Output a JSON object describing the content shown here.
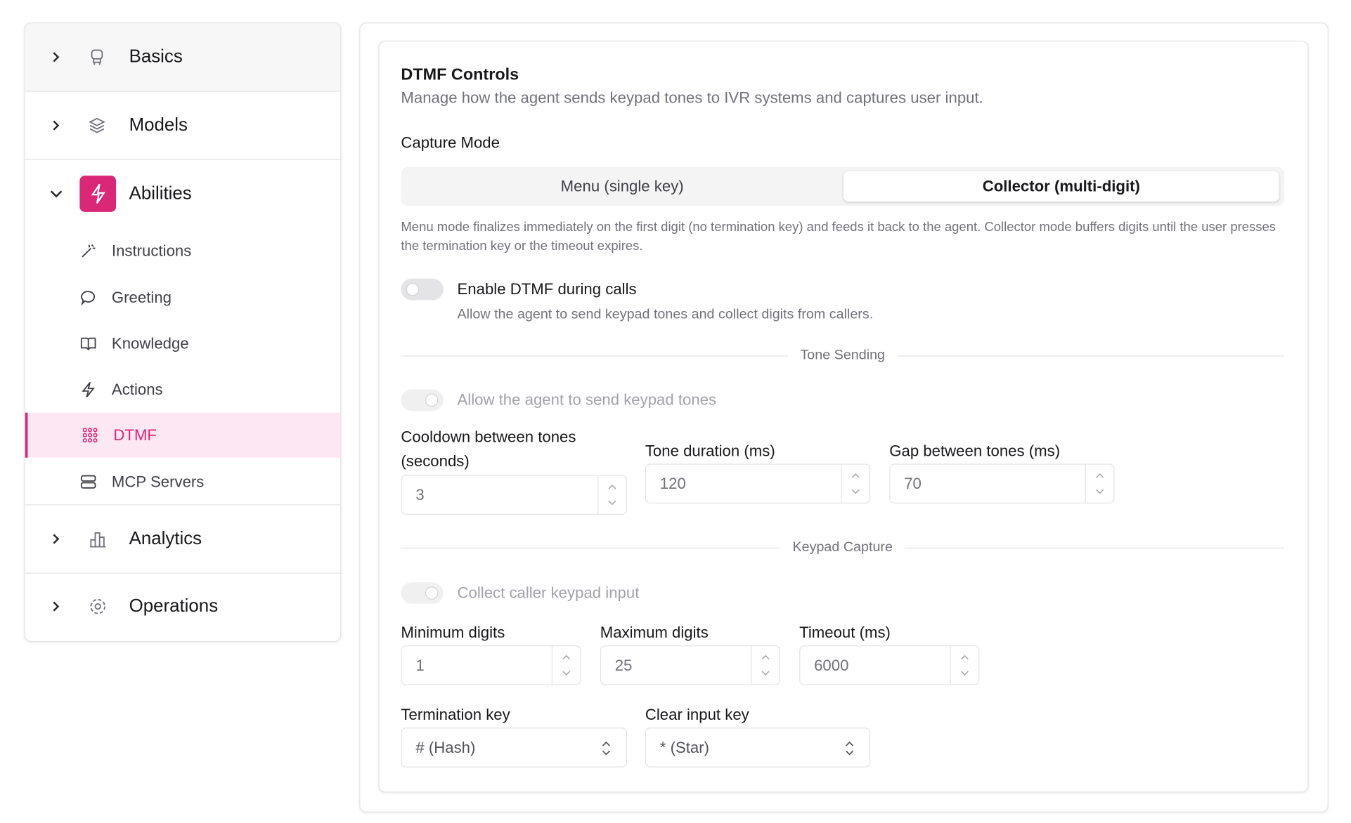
{
  "sidebar": {
    "sections": [
      {
        "label": "Basics"
      },
      {
        "label": "Models"
      },
      {
        "label": "Abilities",
        "items": [
          "Instructions",
          "Greeting",
          "Knowledge",
          "Actions",
          "DTMF",
          "MCP Servers"
        ]
      },
      {
        "label": "Analytics"
      },
      {
        "label": "Operations"
      }
    ]
  },
  "panel": {
    "title": "DTMF Controls",
    "description": "Manage how the agent sends keypad tones to IVR systems and captures user input.",
    "capture_mode": {
      "label": "Capture Mode",
      "options": [
        "Menu (single key)",
        "Collector (multi-digit)"
      ],
      "help": "Menu mode finalizes immediately on the first digit (no termination key) and feeds it back to the agent. Collector mode buffers digits until the user presses the termination key or the timeout expires."
    },
    "enable": {
      "label": "Enable DTMF during calls",
      "description": "Allow the agent to send keypad tones and collect digits from callers."
    },
    "tone_sending": {
      "divider": "Tone Sending",
      "toggle": "Allow the agent to send keypad tones",
      "fields": [
        {
          "label": "Cooldown between tones (seconds)",
          "value": "3"
        },
        {
          "label": "Tone duration (ms)",
          "value": "120"
        },
        {
          "label": "Gap between tones (ms)",
          "value": "70"
        }
      ]
    },
    "keypad_capture": {
      "divider": "Keypad Capture",
      "toggle": "Collect caller keypad input",
      "fields": [
        {
          "label": "Minimum digits",
          "value": "1"
        },
        {
          "label": "Maximum digits",
          "value": "25"
        },
        {
          "label": "Timeout (ms)",
          "value": "6000"
        }
      ],
      "selects": [
        {
          "label": "Termination key",
          "value": "# (Hash)"
        },
        {
          "label": "Clear input key",
          "value": "* (Star)"
        }
      ]
    }
  }
}
